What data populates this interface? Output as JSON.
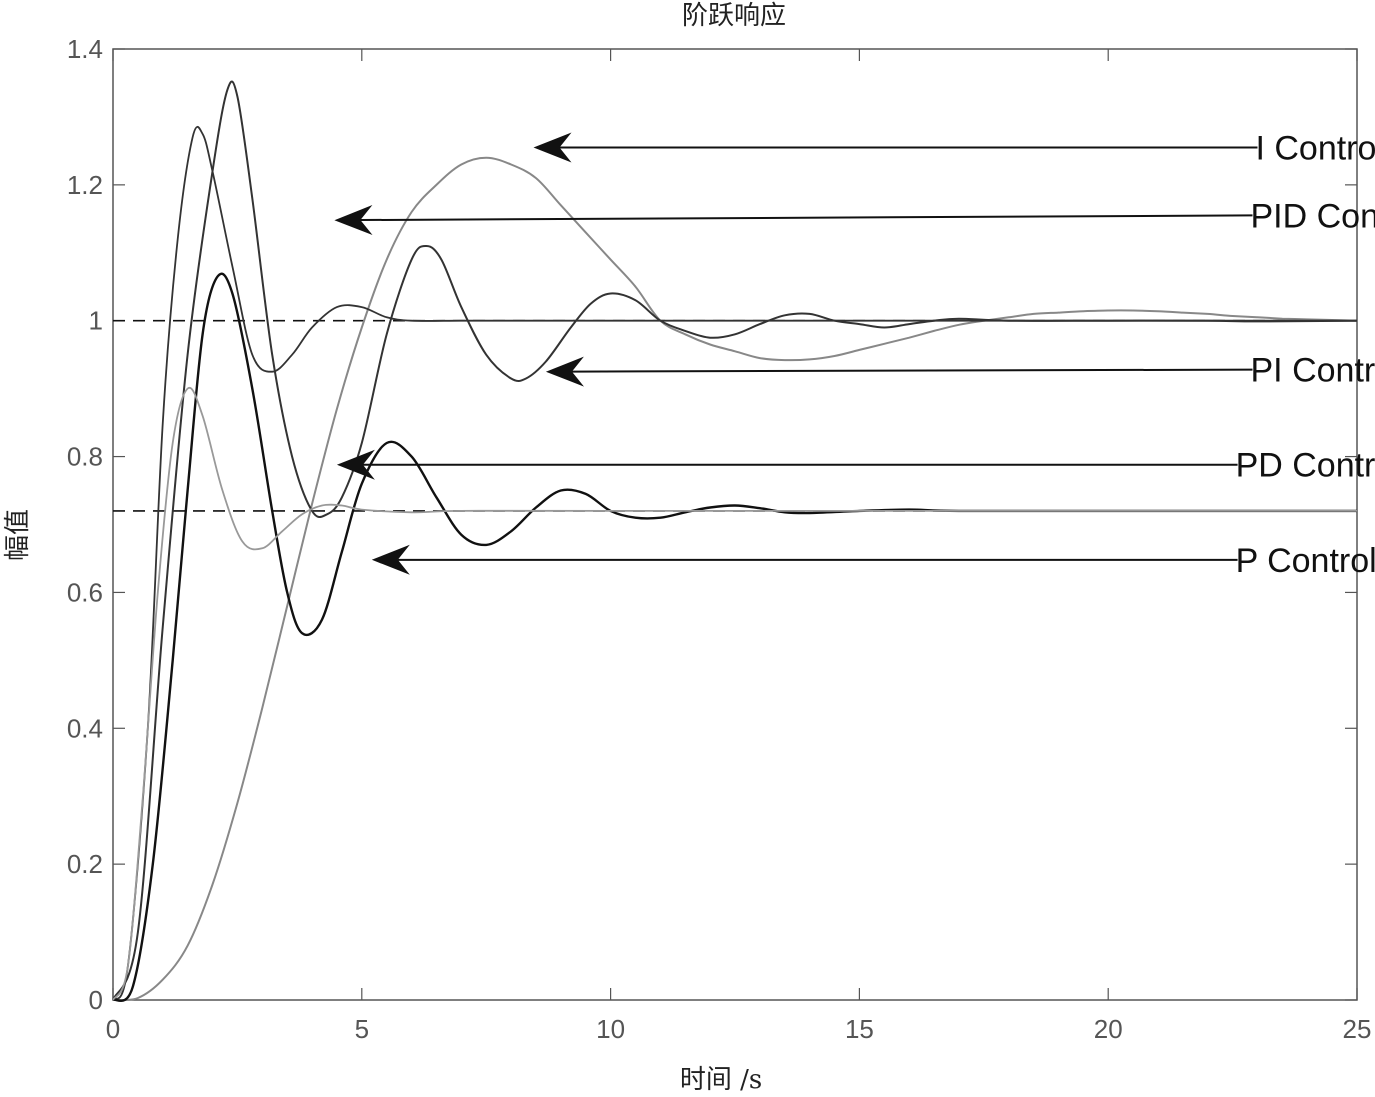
{
  "chart_data": {
    "type": "line",
    "title": "阶跃响应",
    "xlabel": "时间 /s",
    "ylabel": "幅值",
    "xlim": [
      0,
      25
    ],
    "ylim": [
      0,
      1.4
    ],
    "xticks": [
      0,
      5,
      10,
      15,
      20,
      25
    ],
    "yticks": [
      0,
      0.2,
      0.4,
      0.6,
      0.8,
      1,
      1.2,
      1.4
    ],
    "xtick_labels": [
      "0",
      "5",
      "10",
      "15",
      "20",
      "25"
    ],
    "ytick_labels": [
      "0",
      "0.2",
      "0.4",
      "0.6",
      "0.8",
      "1",
      "1.2",
      "1.4"
    ],
    "grid": false,
    "colors": {
      "axis": "#555555",
      "dark": "#333333",
      "black": "#111111",
      "gray": "#888888",
      "light_gray": "#999999"
    },
    "series": [
      {
        "color": "#888888",
        "stroke_width": 2,
        "points": [
          [
            0,
            0
          ],
          [
            0.5,
            0.003
          ],
          [
            1,
            0.03
          ],
          [
            1.5,
            0.08
          ],
          [
            2,
            0.17
          ],
          [
            2.5,
            0.29
          ],
          [
            3,
            0.43
          ],
          [
            3.5,
            0.58
          ],
          [
            4,
            0.73
          ],
          [
            4.5,
            0.87
          ],
          [
            5,
            0.99
          ],
          [
            5.5,
            1.09
          ],
          [
            6,
            1.16
          ],
          [
            6.5,
            1.2
          ],
          [
            7,
            1.23
          ],
          [
            7.5,
            1.24
          ],
          [
            8,
            1.23
          ],
          [
            8.5,
            1.21
          ],
          [
            9,
            1.17
          ],
          [
            9.5,
            1.13
          ],
          [
            10,
            1.09
          ],
          [
            10.5,
            1.05
          ],
          [
            11,
            1.0
          ],
          [
            11.5,
            0.98
          ],
          [
            12,
            0.965
          ],
          [
            12.5,
            0.955
          ],
          [
            13,
            0.945
          ],
          [
            13.5,
            0.942
          ],
          [
            14,
            0.943
          ],
          [
            14.5,
            0.948
          ],
          [
            15,
            0.957
          ],
          [
            15.5,
            0.966
          ],
          [
            16,
            0.975
          ],
          [
            16.5,
            0.985
          ],
          [
            17,
            0.994
          ],
          [
            17.5,
            1.0
          ],
          [
            18,
            1.005
          ],
          [
            18.5,
            1.01
          ],
          [
            19,
            1.012
          ],
          [
            19.5,
            1.014
          ],
          [
            20,
            1.015
          ],
          [
            20.5,
            1.015
          ],
          [
            21,
            1.014
          ],
          [
            21.5,
            1.012
          ],
          [
            22,
            1.01
          ],
          [
            22.5,
            1.007
          ],
          [
            23,
            1.005
          ],
          [
            23.5,
            1.003
          ],
          [
            24,
            1.002
          ],
          [
            24.5,
            1.001
          ],
          [
            25,
            1.0
          ]
        ]
      },
      {
        "color": "#333333",
        "stroke_width": 2,
        "points": [
          [
            0,
            0
          ],
          [
            0.5,
            0.1
          ],
          [
            1,
            0.55
          ],
          [
            1.5,
            0.95
          ],
          [
            2,
            1.22
          ],
          [
            2.3,
            1.34
          ],
          [
            2.5,
            1.33
          ],
          [
            2.8,
            1.18
          ],
          [
            3.2,
            0.95
          ],
          [
            3.6,
            0.8
          ],
          [
            4,
            0.72
          ],
          [
            4.3,
            0.715
          ],
          [
            4.6,
            0.74
          ],
          [
            5,
            0.82
          ],
          [
            5.5,
            0.98
          ],
          [
            6,
            1.09
          ],
          [
            6.3,
            1.11
          ],
          [
            6.6,
            1.09
          ],
          [
            7,
            1.02
          ],
          [
            7.5,
            0.95
          ],
          [
            8,
            0.915
          ],
          [
            8.3,
            0.915
          ],
          [
            8.7,
            0.94
          ],
          [
            9.2,
            0.99
          ],
          [
            9.6,
            1.025
          ],
          [
            10,
            1.04
          ],
          [
            10.5,
            1.03
          ],
          [
            11,
            1.0
          ],
          [
            11.5,
            0.985
          ],
          [
            12,
            0.975
          ],
          [
            12.5,
            0.98
          ],
          [
            13,
            0.995
          ],
          [
            13.5,
            1.008
          ],
          [
            14,
            1.01
          ],
          [
            14.5,
            1.0
          ],
          [
            15,
            0.995
          ],
          [
            15.5,
            0.99
          ],
          [
            16,
            0.995
          ],
          [
            16.5,
            1.0
          ],
          [
            17,
            1.003
          ],
          [
            18,
            1.0
          ],
          [
            20,
            1.0
          ],
          [
            22,
            1.0
          ],
          [
            23,
            0.999
          ],
          [
            25,
            1.0
          ]
        ]
      },
      {
        "color": "#333333",
        "stroke_width": 1.8,
        "points": [
          [
            0,
            0
          ],
          [
            0.3,
            0.05
          ],
          [
            0.7,
            0.4
          ],
          [
            1.0,
            0.85
          ],
          [
            1.3,
            1.12
          ],
          [
            1.6,
            1.27
          ],
          [
            1.8,
            1.275
          ],
          [
            2,
            1.22
          ],
          [
            2.4,
            1.08
          ],
          [
            2.8,
            0.95
          ],
          [
            3.2,
            0.925
          ],
          [
            3.6,
            0.95
          ],
          [
            4,
            0.99
          ],
          [
            4.5,
            1.02
          ],
          [
            5,
            1.02
          ],
          [
            5.5,
            1.005
          ],
          [
            6,
            1.0
          ],
          [
            7,
            1.0
          ],
          [
            8,
            1.0
          ],
          [
            10,
            1.0
          ],
          [
            12,
            1.0
          ],
          [
            15,
            1.0
          ],
          [
            20,
            1.0
          ],
          [
            25,
            1.0
          ]
        ]
      },
      {
        "color": "#111111",
        "stroke_width": 2.4,
        "points": [
          [
            0,
            0
          ],
          [
            0.4,
            0.02
          ],
          [
            0.8,
            0.2
          ],
          [
            1.2,
            0.5
          ],
          [
            1.5,
            0.75
          ],
          [
            1.8,
            0.98
          ],
          [
            2.1,
            1.065
          ],
          [
            2.4,
            1.04
          ],
          [
            2.8,
            0.9
          ],
          [
            3.2,
            0.72
          ],
          [
            3.5,
            0.6
          ],
          [
            3.8,
            0.54
          ],
          [
            4.2,
            0.56
          ],
          [
            4.6,
            0.66
          ],
          [
            5,
            0.76
          ],
          [
            5.5,
            0.82
          ],
          [
            6,
            0.8
          ],
          [
            6.5,
            0.74
          ],
          [
            7,
            0.685
          ],
          [
            7.5,
            0.67
          ],
          [
            8,
            0.69
          ],
          [
            8.5,
            0.725
          ],
          [
            9,
            0.75
          ],
          [
            9.5,
            0.745
          ],
          [
            10,
            0.72
          ],
          [
            10.5,
            0.71
          ],
          [
            11,
            0.71
          ],
          [
            11.5,
            0.718
          ],
          [
            12,
            0.725
          ],
          [
            12.5,
            0.728
          ],
          [
            13,
            0.724
          ],
          [
            13.5,
            0.718
          ],
          [
            14,
            0.717
          ],
          [
            15,
            0.72
          ],
          [
            16,
            0.722
          ],
          [
            17,
            0.72
          ],
          [
            20,
            0.72
          ],
          [
            25,
            0.72
          ]
        ]
      },
      {
        "color": "#999999",
        "stroke_width": 1.8,
        "points": [
          [
            0,
            0
          ],
          [
            0.3,
            0.05
          ],
          [
            0.6,
            0.3
          ],
          [
            0.9,
            0.6
          ],
          [
            1.2,
            0.82
          ],
          [
            1.5,
            0.9
          ],
          [
            1.8,
            0.86
          ],
          [
            2.2,
            0.75
          ],
          [
            2.6,
            0.675
          ],
          [
            3,
            0.665
          ],
          [
            3.4,
            0.69
          ],
          [
            3.8,
            0.715
          ],
          [
            4.2,
            0.728
          ],
          [
            4.6,
            0.728
          ],
          [
            5,
            0.722
          ],
          [
            6,
            0.718
          ],
          [
            7,
            0.72
          ],
          [
            10,
            0.72
          ],
          [
            25,
            0.72
          ]
        ]
      }
    ],
    "reference_lines": [
      {
        "y": 1.0,
        "style": "dashed"
      },
      {
        "y": 0.72,
        "style": "dashed"
      }
    ],
    "annotations": [
      {
        "label": "I Control",
        "text_at": [
          23.0,
          1.255
        ],
        "arrow_tail": [
          23.0,
          1.255
        ],
        "arrow_head": [
          8.45,
          1.255
        ]
      },
      {
        "label": "PID Control",
        "text_at": [
          22.9,
          1.155
        ],
        "arrow_tail": [
          22.9,
          1.155
        ],
        "arrow_head": [
          4.45,
          1.148
        ]
      },
      {
        "label": "PI Control",
        "text_at": [
          22.9,
          0.928
        ],
        "arrow_tail": [
          22.9,
          0.928
        ],
        "arrow_head": [
          8.7,
          0.925
        ]
      },
      {
        "label": "PD Control",
        "text_at": [
          22.6,
          0.788
        ],
        "arrow_tail": [
          22.6,
          0.788
        ],
        "arrow_head": [
          4.5,
          0.788
        ]
      },
      {
        "label": "P Control",
        "text_at": [
          22.6,
          0.648
        ],
        "arrow_tail": [
          22.6,
          0.648
        ],
        "arrow_head": [
          5.2,
          0.648
        ]
      }
    ]
  }
}
